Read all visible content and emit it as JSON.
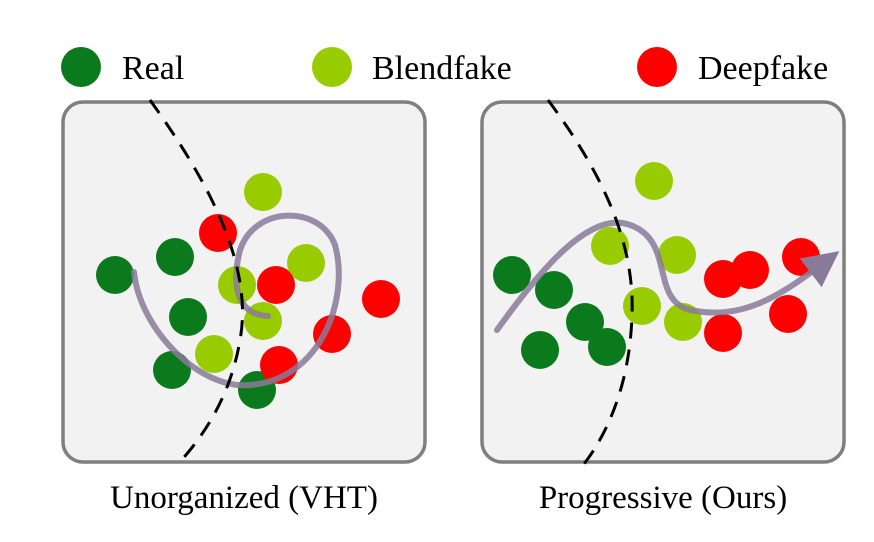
{
  "colors": {
    "real": "#0a7a1c",
    "blendfake": "#99cc00",
    "deepfake": "#ff0000",
    "panel_fill": "#f2f2f2",
    "panel_border": "#7f7f7f",
    "trajectory": "#8a7a99",
    "boundary": "#000000"
  },
  "legend": {
    "items": [
      {
        "label": "Real",
        "class": "real"
      },
      {
        "label": "Blendfake",
        "class": "blendfake"
      },
      {
        "label": "Deepfake",
        "class": "deepfake"
      }
    ]
  },
  "panels": [
    {
      "caption": "Unorganized (VHT)",
      "trajectory_shape": "spiral",
      "trajectory_has_arrow": false,
      "boundary_style": "dashed"
    },
    {
      "caption": "Progressive (Ours)",
      "trajectory_shape": "wave",
      "trajectory_has_arrow": true,
      "boundary_style": "dashed"
    }
  ]
}
